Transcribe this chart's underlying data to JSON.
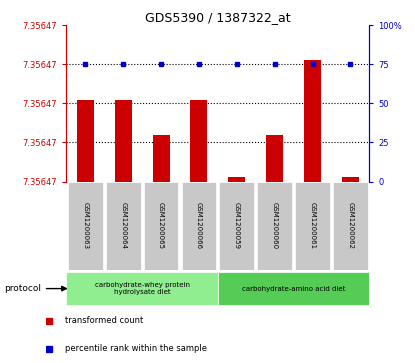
{
  "title": "GDS5390 / 1387322_at",
  "samples": [
    "GSM1200063",
    "GSM1200064",
    "GSM1200065",
    "GSM1200066",
    "GSM1200059",
    "GSM1200060",
    "GSM1200061",
    "GSM1200062"
  ],
  "bar_values": [
    52,
    52,
    30,
    52,
    3,
    30,
    78,
    3
  ],
  "dot_values": [
    75,
    75,
    75,
    75,
    75,
    75,
    75,
    75
  ],
  "left_yticks": [
    0,
    25,
    50,
    75,
    100
  ],
  "left_ylabels": [
    "7.35647",
    "7.35647",
    "7.35647",
    "7.35647",
    "7.35647"
  ],
  "right_yticks": [
    0,
    25,
    50,
    75,
    100
  ],
  "right_ylabels": [
    "0",
    "25",
    "50",
    "75",
    "100%"
  ],
  "bar_color": "#CC0000",
  "dot_color": "#0000CC",
  "protocol_groups": [
    {
      "label": "carbohydrate-whey protein\nhydrolysate diet",
      "start": 0,
      "end": 4,
      "color": "#90EE90"
    },
    {
      "label": "carbohydrate-amino acid diet",
      "start": 4,
      "end": 8,
      "color": "#55CC55"
    }
  ],
  "legend_items": [
    {
      "label": "transformed count",
      "color": "#CC0000"
    },
    {
      "label": "percentile rank within the sample",
      "color": "#0000CC"
    }
  ],
  "protocol_label": "protocol",
  "sample_bg_color": "#C8C8C8",
  "plot_bg_color": "#FFFFFF",
  "ylim": [
    0,
    100
  ],
  "dotted_line_levels": [
    25,
    50,
    75
  ],
  "fig_w": 4.15,
  "fig_h": 3.63,
  "dpi": 100
}
